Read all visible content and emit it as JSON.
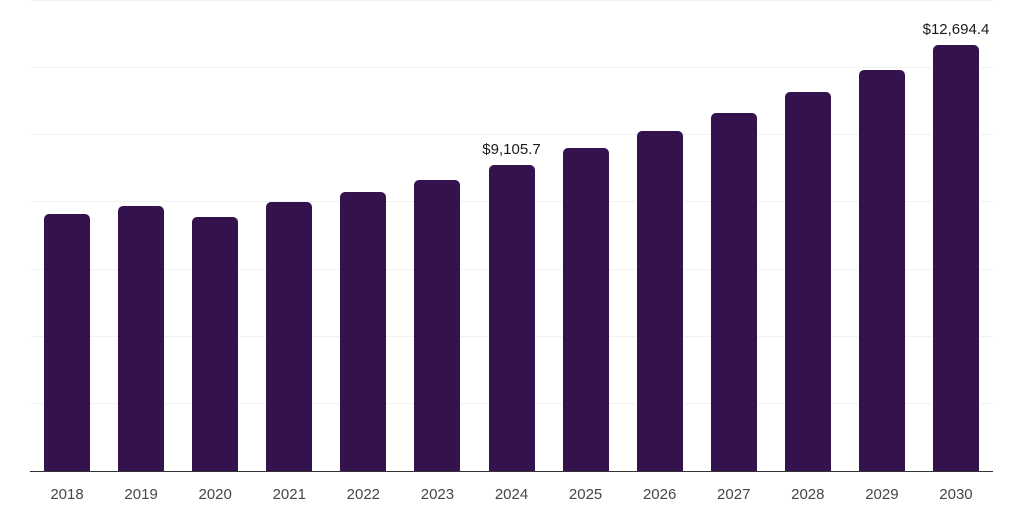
{
  "chart_data": {
    "type": "bar",
    "title": "",
    "xlabel": "",
    "ylabel": "",
    "categories": [
      "2018",
      "2019",
      "2020",
      "2021",
      "2022",
      "2023",
      "2024",
      "2025",
      "2026",
      "2027",
      "2028",
      "2029",
      "2030"
    ],
    "values": [
      7655,
      7895,
      7575,
      8020,
      8320,
      8670,
      9105.7,
      9610,
      10120,
      10650,
      11300,
      11960,
      12694.4
    ],
    "data_labels": [
      "",
      "",
      "",
      "",
      "",
      "",
      "$9,105.7",
      "",
      "",
      "",
      "",
      "",
      "$12,694.4"
    ],
    "labeled_points": [
      {
        "category": "2024",
        "label": "$9,105.7",
        "value": 9105.7
      },
      {
        "category": "2030",
        "label": "$12,694.4",
        "value": 12694.4
      }
    ],
    "ylim": [
      0,
      14000
    ],
    "gridline_values": [
      2000,
      4000,
      6000,
      8000,
      10000,
      12000,
      14000
    ],
    "grid": "horizontal-only",
    "legend": "none",
    "value_prefix": "$",
    "colors": {
      "bar": "#34124E",
      "gridline": "#f2f2f2",
      "axis_line": "#333333",
      "tick_label": "#474747",
      "data_label": "#1a1a1a",
      "background": "#ffffff"
    }
  }
}
